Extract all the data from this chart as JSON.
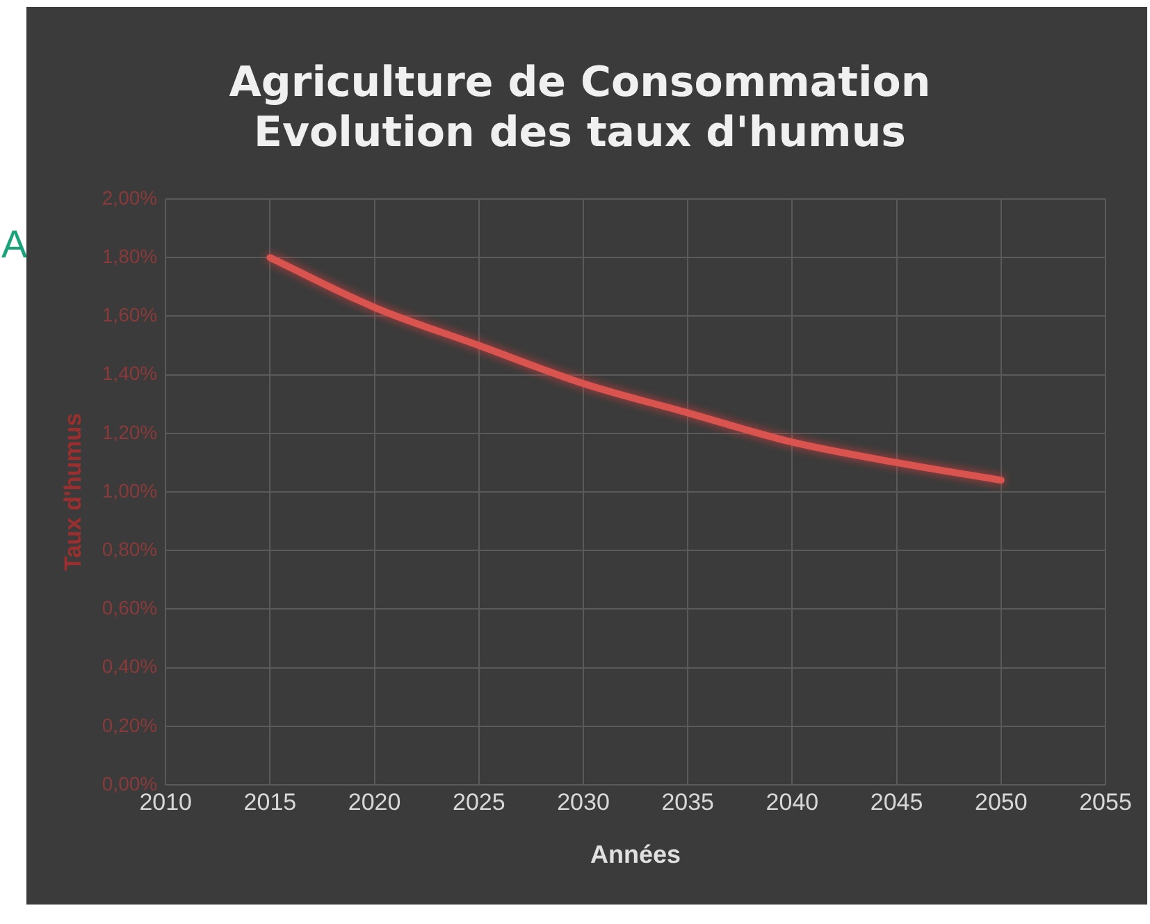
{
  "chart_data": {
    "type": "line",
    "title": "Agriculture de Consommation\nEvolution des taux d'humus",
    "xlabel": "Années",
    "ylabel": "Taux d'humus",
    "annotations": [
      "A"
    ],
    "x": [
      2015,
      2020,
      2025,
      2030,
      2035,
      2040,
      2045,
      2050
    ],
    "series": [
      {
        "color": "#d9534f",
        "values": [
          1.8,
          1.63,
          1.5,
          1.37,
          1.27,
          1.17,
          1.1,
          1.04
        ]
      }
    ],
    "xlim": [
      2010,
      2055
    ],
    "xticks": [
      2010,
      2015,
      2020,
      2025,
      2030,
      2035,
      2040,
      2045,
      2050,
      2055
    ],
    "ylim": [
      0,
      2
    ],
    "yticks": [
      {
        "value": 0,
        "label": "0,00%"
      },
      {
        "value": 0.2,
        "label": "0,20%"
      },
      {
        "value": 0.4,
        "label": "0,40%"
      },
      {
        "value": 0.6,
        "label": "0,60%"
      },
      {
        "value": 0.8,
        "label": "0,80%"
      },
      {
        "value": 1,
        "label": "1,00%"
      },
      {
        "value": 1.2,
        "label": "1,20%"
      },
      {
        "value": 1.4,
        "label": "1,40%"
      },
      {
        "value": 1.6,
        "label": "1,60%"
      },
      {
        "value": 1.8,
        "label": "1,80%"
      },
      {
        "value": 2,
        "label": "2,00%"
      }
    ],
    "grid": true,
    "legend": false,
    "marker": "none",
    "line_style": "solid"
  }
}
